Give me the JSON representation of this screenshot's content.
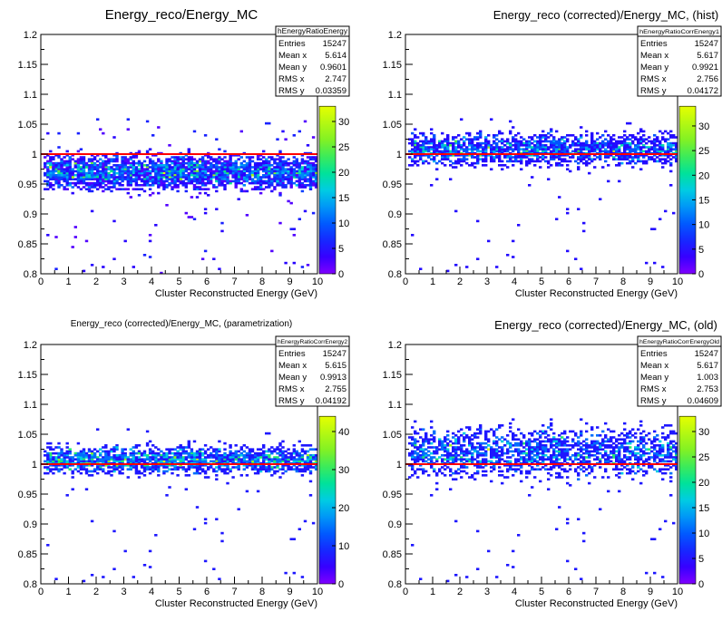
{
  "chart_data": [
    {
      "type": "heatmap",
      "title": "Energy_reco/Energy_MC",
      "title_size": "large",
      "xlabel": "Cluster Reconstructed Energy (GeV)",
      "ylabel": "",
      "xlim": [
        0,
        10
      ],
      "ylim": [
        0.8,
        1.2
      ],
      "x_ticks": [
        "0",
        "1",
        "2",
        "3",
        "4",
        "5",
        "6",
        "7",
        "8",
        "9",
        "10"
      ],
      "y_ticks": [
        "0.8",
        "0.85",
        "0.9",
        "0.95",
        "1",
        "1.05",
        "1.1",
        "1.15",
        "1.2"
      ],
      "reference_line_y": 1,
      "z_max": 33,
      "z_ticks": [
        "0",
        "5",
        "10",
        "15",
        "20",
        "25",
        "30"
      ],
      "band": {
        "center": 0.97,
        "spread": 0.014
      },
      "stats": {
        "name": "hEnergyRatioEnergy",
        "rows": [
          [
            "Entries",
            "15247"
          ],
          [
            "Mean x",
            "5.614"
          ],
          [
            "Mean y",
            "0.9601"
          ],
          [
            "RMS x",
            "2.747"
          ],
          [
            "RMS y",
            "0.03359"
          ]
        ]
      }
    },
    {
      "type": "heatmap",
      "title": "Energy_reco (corrected)/Energy_MC, (hist)",
      "title_size": "medium",
      "xlabel": "Cluster Reconstructed Energy (GeV)",
      "ylabel": "",
      "xlim": [
        0,
        10
      ],
      "ylim": [
        0.8,
        1.2
      ],
      "x_ticks": [
        "0",
        "1",
        "2",
        "3",
        "4",
        "5",
        "6",
        "7",
        "8",
        "9",
        "10"
      ],
      "y_ticks": [
        "0.8",
        "0.85",
        "0.9",
        "0.95",
        "1",
        "1.05",
        "1.1",
        "1.15",
        "1.2"
      ],
      "reference_line_y": 1,
      "z_max": 34,
      "z_ticks": [
        "0",
        "5",
        "10",
        "15",
        "20",
        "25",
        "30"
      ],
      "band": {
        "center": 1.008,
        "spread": 0.013
      },
      "stats": {
        "name": "hEnergyRatioCorrEnergy1",
        "rows": [
          [
            "Entries",
            "15247"
          ],
          [
            "Mean x",
            "5.617"
          ],
          [
            "Mean y",
            "0.9921"
          ],
          [
            "RMS x",
            "2.756"
          ],
          [
            "RMS y",
            "0.04172"
          ]
        ]
      }
    },
    {
      "type": "heatmap",
      "title": "Energy_reco (corrected)/Energy_MC, (parametrization)",
      "title_size": "small",
      "xlabel": "Cluster Reconstructed Energy (GeV)",
      "ylabel": "",
      "xlim": [
        0,
        10
      ],
      "ylim": [
        0.8,
        1.2
      ],
      "x_ticks": [
        "0",
        "1",
        "2",
        "3",
        "4",
        "5",
        "6",
        "7",
        "8",
        "9",
        "10"
      ],
      "y_ticks": [
        "0.8",
        "0.85",
        "0.9",
        "0.95",
        "1",
        "1.05",
        "1.1",
        "1.15",
        "1.2"
      ],
      "reference_line_y": 1,
      "z_max": 44,
      "z_ticks": [
        "0",
        "10",
        "20",
        "30",
        "40"
      ],
      "band": {
        "center": 1.007,
        "spread": 0.011
      },
      "stats": {
        "name": "hEnergyRatioCorrEnergy2",
        "rows": [
          [
            "Entries",
            "15247"
          ],
          [
            "Mean x",
            "5.615"
          ],
          [
            "Mean y",
            "0.9913"
          ],
          [
            "RMS x",
            "2.755"
          ],
          [
            "RMS y",
            "0.04192"
          ]
        ]
      }
    },
    {
      "type": "heatmap",
      "title": "Energy_reco (corrected)/Energy_MC, (old)",
      "title_size": "medium",
      "xlabel": "Cluster Reconstructed Energy (GeV)",
      "ylabel": "",
      "xlim": [
        0,
        10
      ],
      "ylim": [
        0.8,
        1.2
      ],
      "x_ticks": [
        "0",
        "1",
        "2",
        "3",
        "4",
        "5",
        "6",
        "7",
        "8",
        "9",
        "10"
      ],
      "y_ticks": [
        "0.8",
        "0.85",
        "0.9",
        "0.95",
        "1",
        "1.05",
        "1.1",
        "1.15",
        "1.2"
      ],
      "reference_line_y": 1,
      "z_max": 33,
      "z_ticks": [
        "0",
        "5",
        "10",
        "15",
        "20",
        "25",
        "30"
      ],
      "band": {
        "center": 1.02,
        "spread": 0.02
      },
      "stats": {
        "name": "hEnergyRatioCorrEnergyOld",
        "rows": [
          [
            "Entries",
            "15247"
          ],
          [
            "Mean x",
            "5.617"
          ],
          [
            "Mean y",
            "1.003"
          ],
          [
            "RMS x",
            "2.753"
          ],
          [
            "RMS y",
            "0.04609"
          ]
        ]
      }
    }
  ]
}
